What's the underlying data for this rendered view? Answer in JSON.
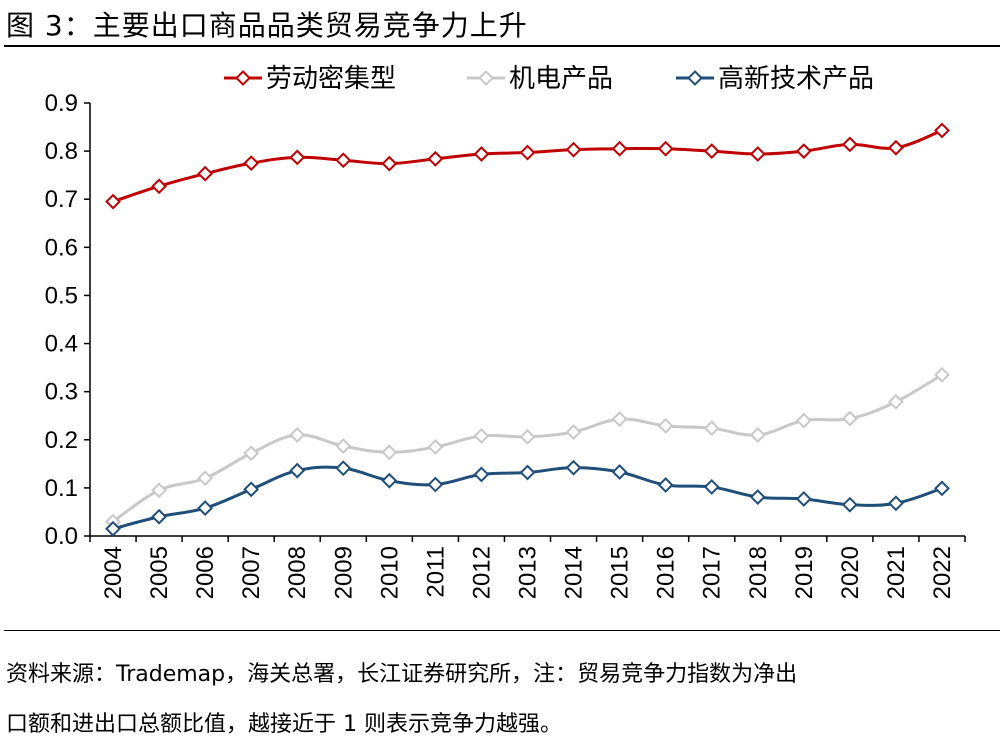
{
  "figure": {
    "title": "图 3：主要出口商品品类贸易竞争力上升",
    "source_line1": "资料来源：Trademap，海关总署，长江证券研究所，注：贸易竞争力指数为净出",
    "source_line2": "口额和进出口总额比值，越接近于 1 则表示竞争力越强。"
  },
  "chart_data": {
    "type": "line",
    "title": "",
    "xlabel": "",
    "ylabel": "",
    "ylim": [
      0,
      0.9
    ],
    "yticks": [
      "0.0",
      "0.1",
      "0.2",
      "0.3",
      "0.4",
      "0.5",
      "0.6",
      "0.7",
      "0.8",
      "0.9"
    ],
    "categories": [
      "2004",
      "2005",
      "2006",
      "2007",
      "2008",
      "2009",
      "2010",
      "2011",
      "2012",
      "2013",
      "2014",
      "2015",
      "2016",
      "2017",
      "2018",
      "2019",
      "2020",
      "2021",
      "2022"
    ],
    "legend_position": "top",
    "grid": false,
    "series": [
      {
        "name": "劳动密集型",
        "color": "#C00000",
        "marker": "diamond",
        "values": [
          0.695,
          0.727,
          0.753,
          0.775,
          0.787,
          0.781,
          0.774,
          0.784,
          0.794,
          0.797,
          0.803,
          0.805,
          0.805,
          0.8,
          0.794,
          0.8,
          0.814,
          0.807,
          0.843
        ]
      },
      {
        "name": "机电产品",
        "color": "#C8C8C8",
        "marker": "diamond",
        "values": [
          0.03,
          0.095,
          0.12,
          0.172,
          0.21,
          0.187,
          0.174,
          0.185,
          0.208,
          0.206,
          0.216,
          0.243,
          0.229,
          0.224,
          0.21,
          0.24,
          0.244,
          0.279,
          0.335
        ]
      },
      {
        "name": "高新技术产品",
        "color": "#1F4E79",
        "marker": "diamond",
        "values": [
          0.015,
          0.04,
          0.058,
          0.097,
          0.136,
          0.141,
          0.115,
          0.107,
          0.128,
          0.132,
          0.142,
          0.133,
          0.106,
          0.102,
          0.081,
          0.077,
          0.065,
          0.068,
          0.099
        ]
      }
    ]
  }
}
